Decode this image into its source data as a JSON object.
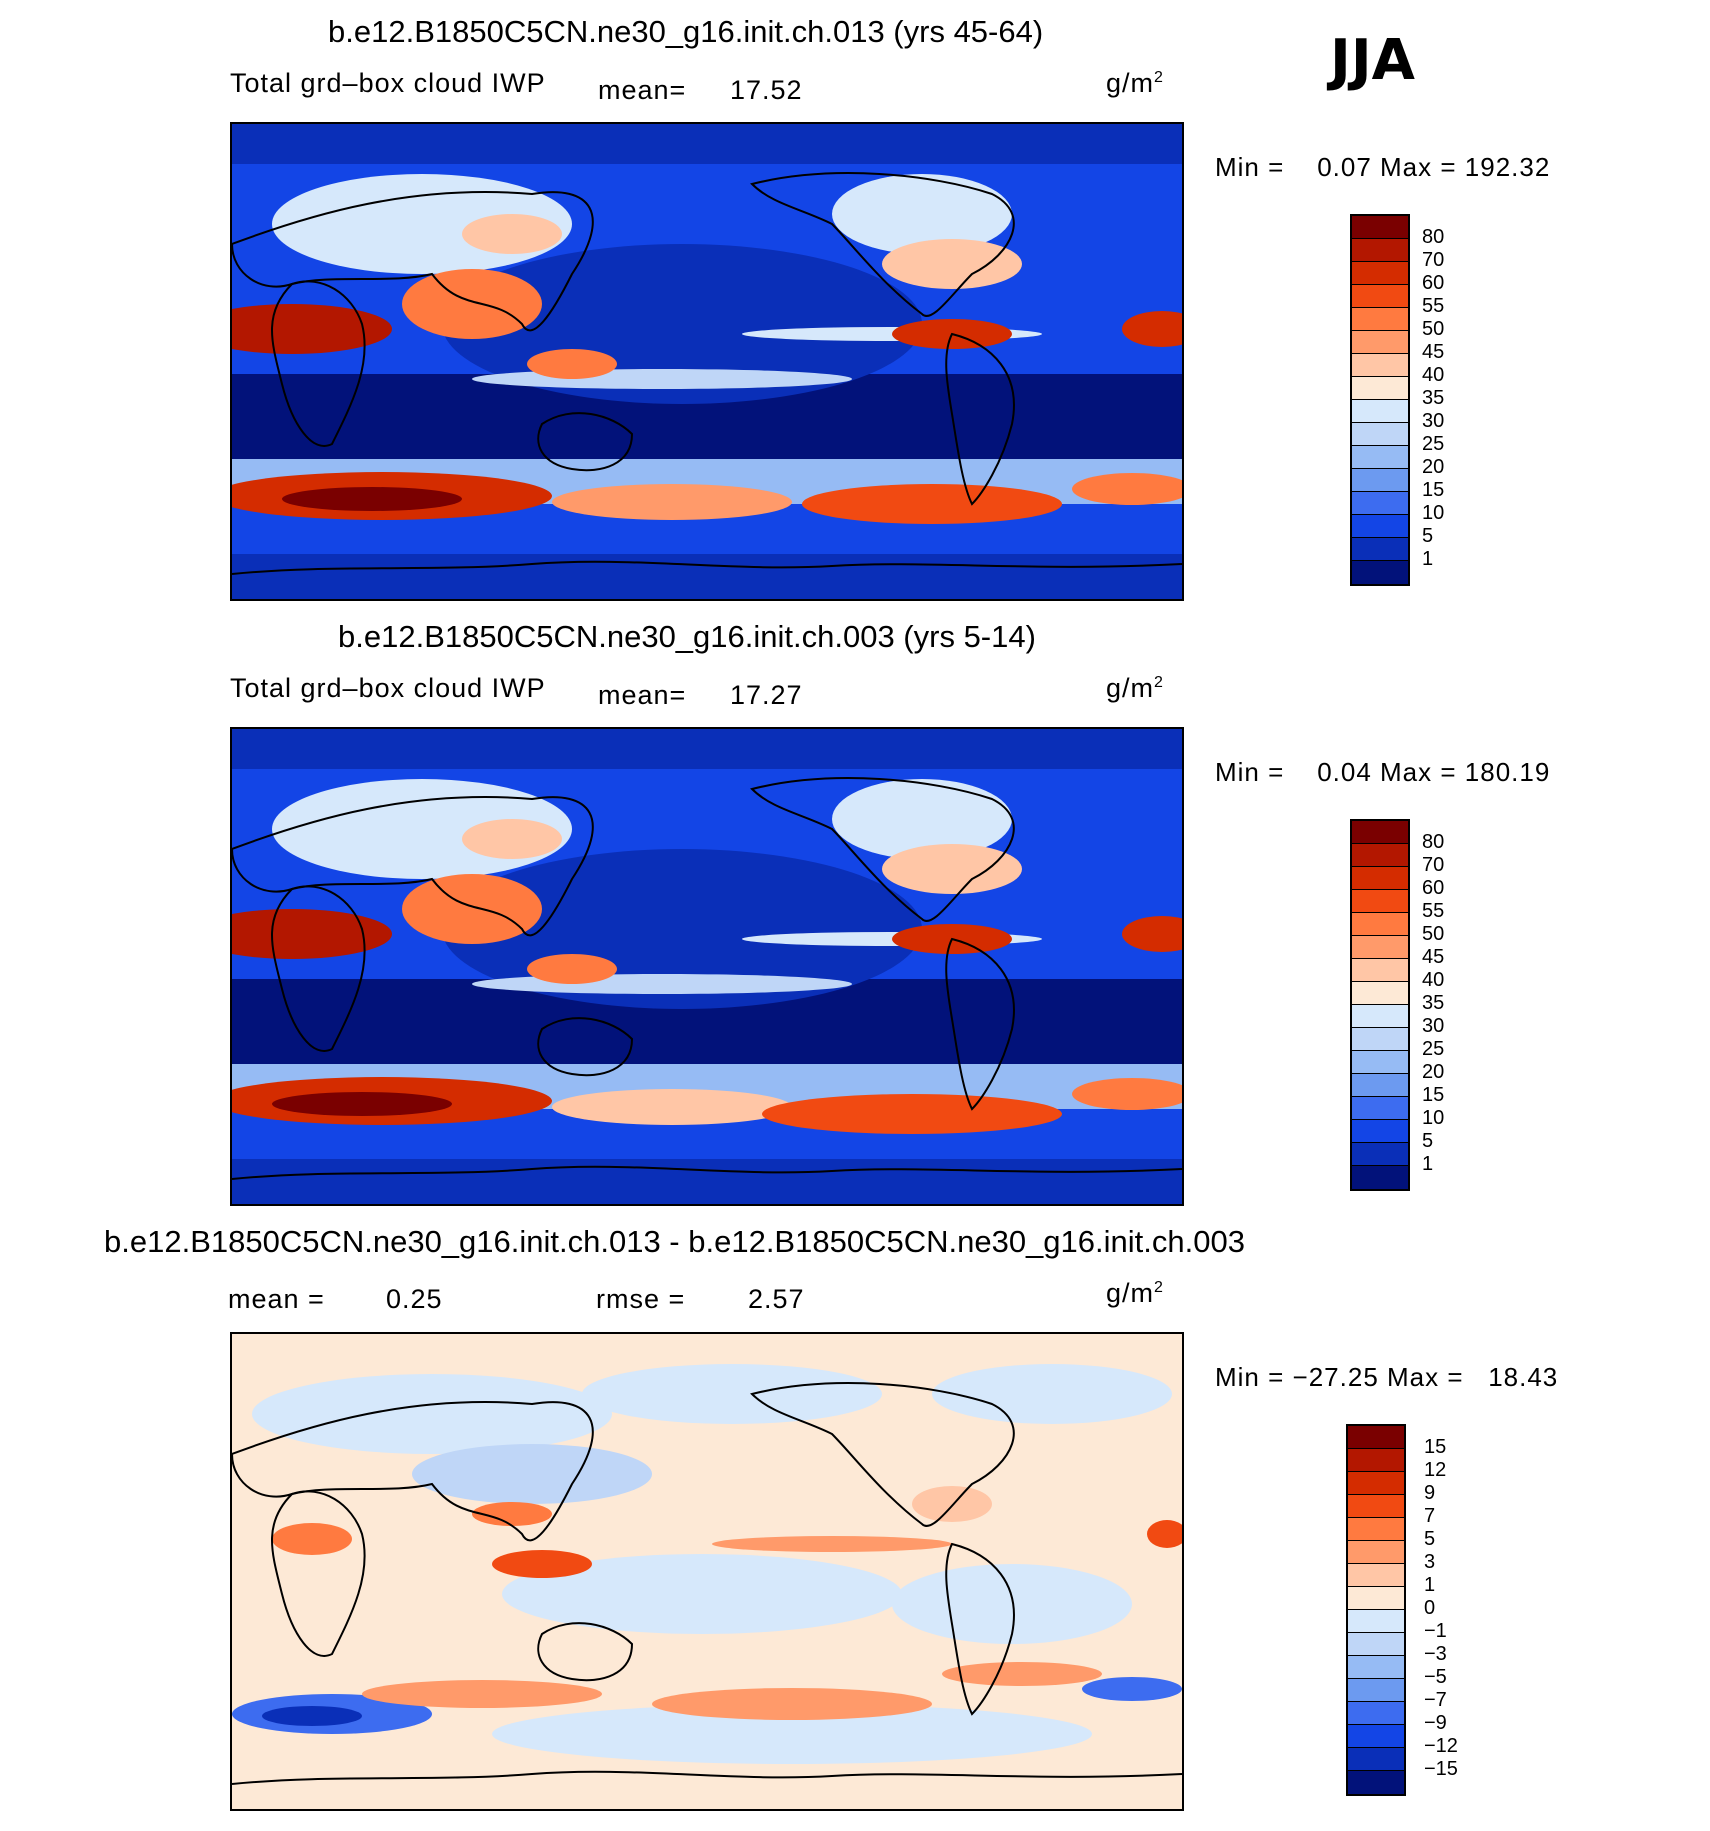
{
  "season": "JJA",
  "units": "g/m",
  "units_sup": "2",
  "panels": [
    {
      "title": "b.e12.B1850C5CN.ne30_g16.init.ch.013 (yrs 45-64)",
      "variable": "Total grd–box cloud IWP",
      "stat_label": "mean=",
      "stat_value": "17.52",
      "minmax": "Min =    0.07 Max = 192.32",
      "levels": [
        "80",
        "70",
        "60",
        "55",
        "50",
        "45",
        "40",
        "35",
        "30",
        "25",
        "20",
        "15",
        "10",
        "5",
        "1"
      ],
      "colors": [
        "#7a0000",
        "#b31700",
        "#d42c00",
        "#f14a12",
        "#ff7a40",
        "#ff9a6a",
        "#ffc6a6",
        "#fde9d6",
        "#d6e8fb",
        "#bfd6f7",
        "#96bbf4",
        "#6c9af0",
        "#3d6cf0",
        "#1345e6",
        "#0a2fb8",
        "#02127a"
      ]
    },
    {
      "title": "b.e12.B1850C5CN.ne30_g16.init.ch.003 (yrs 5-14)",
      "variable": "Total grd–box cloud IWP",
      "stat_label": "mean=",
      "stat_value": "17.27",
      "minmax": "Min =    0.04 Max = 180.19",
      "levels": [
        "80",
        "70",
        "60",
        "55",
        "50",
        "45",
        "40",
        "35",
        "30",
        "25",
        "20",
        "15",
        "10",
        "5",
        "1"
      ],
      "colors": [
        "#7a0000",
        "#b31700",
        "#d42c00",
        "#f14a12",
        "#ff7a40",
        "#ff9a6a",
        "#ffc6a6",
        "#fde9d6",
        "#d6e8fb",
        "#bfd6f7",
        "#96bbf4",
        "#6c9af0",
        "#3d6cf0",
        "#1345e6",
        "#0a2fb8",
        "#02127a"
      ]
    },
    {
      "title": "b.e12.B1850C5CN.ne30_g16.init.ch.013 - b.e12.B1850C5CN.ne30_g16.init.ch.003",
      "stat_label": "mean =",
      "stat_value": "0.25",
      "rmse_label": "rmse =",
      "rmse_value": "2.57",
      "minmax": "Min = −27.25 Max =   18.43",
      "levels": [
        "15",
        "12",
        "9",
        "7",
        "5",
        "3",
        "1",
        "0",
        "−1",
        "−3",
        "−5",
        "−7",
        "−9",
        "−12",
        "−15"
      ],
      "colors": [
        "#7a0000",
        "#b31700",
        "#d42c00",
        "#f14a12",
        "#ff7a40",
        "#ff9a6a",
        "#ffc6a6",
        "#fde9d6",
        "#d6e8fb",
        "#bfd6f7",
        "#96bbf4",
        "#6c9af0",
        "#3d6cf0",
        "#1345e6",
        "#0a2fb8",
        "#02127a"
      ]
    }
  ]
}
